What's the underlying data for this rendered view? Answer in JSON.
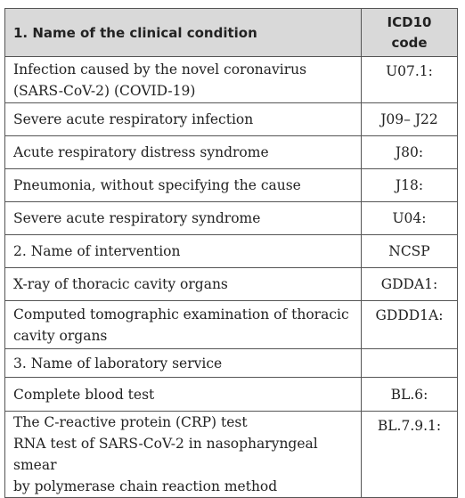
{
  "header": {
    "condition_label": "1. Name of the clinical condition",
    "code_label_line1": "ICD10",
    "code_label_line2": "code"
  },
  "rows": [
    {
      "name": "Infection caused by the novel coronavirus (SARS-CoV-2) (COVID-19)",
      "code": "U07.1:"
    },
    {
      "name": "Severe acute respiratory infection",
      "code": "J09– J22"
    },
    {
      "name": "Acute respiratory distress syndrome",
      "code": "J80:"
    },
    {
      "name": "Pneumonia, without specifying the cause",
      "code": "J18:"
    },
    {
      "name": "Severe acute respiratory syndrome",
      "code": "U04:"
    },
    {
      "name": "2. Name of intervention",
      "code": "NCSP"
    },
    {
      "name": "X-ray of thoracic cavity organs",
      "code": "GDDA1:"
    },
    {
      "name": "Computed tomographic examination of thoracic cavity organs",
      "code": "GDDD1A:"
    },
    {
      "name": "3. Name of laboratory service",
      "code": ""
    },
    {
      "name": "Complete blood test",
      "code": "BL.6:"
    },
    {
      "name_lines": [
        "The C-reactive protein (CRP) test",
        "RNA test of SARS-CoV-2 in nasopharyngeal smear",
        "by polymerase chain reaction method"
      ],
      "code": "BL.7.9.1:"
    }
  ]
}
